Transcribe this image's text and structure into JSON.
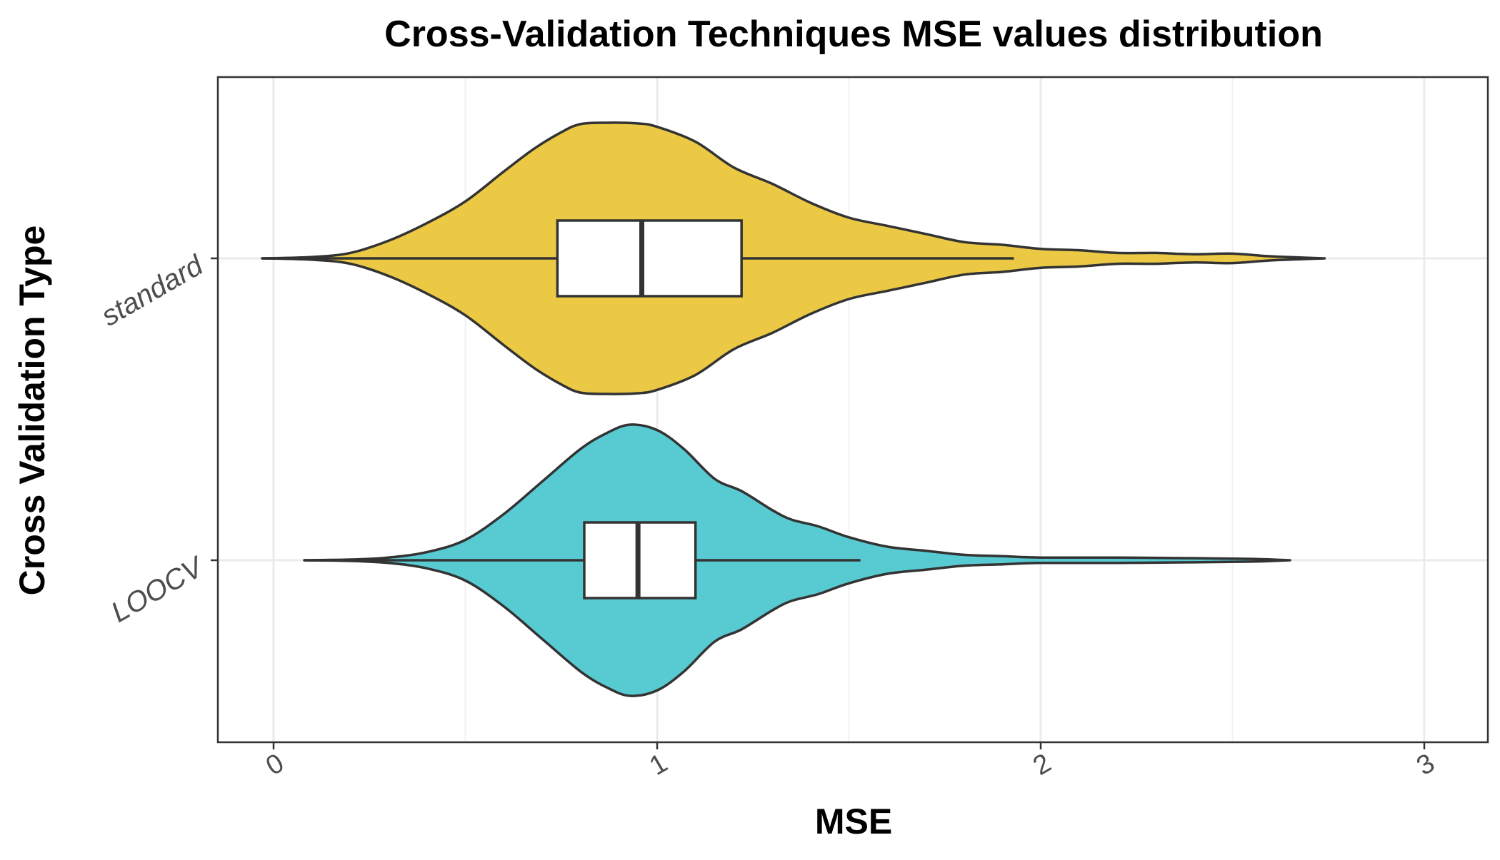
{
  "chart_data": {
    "type": "violin",
    "title": "Cross-Validation Techniques MSE values distribution",
    "xlabel": "MSE",
    "ylabel": "Cross Validation Type",
    "xlim": [
      -0.15,
      3.15
    ],
    "xticks": [
      0,
      1,
      2,
      3
    ],
    "xtick_labels": [
      "0",
      "1",
      "2",
      "3"
    ],
    "grid": true,
    "legend": "none",
    "categories": [
      "standard",
      "LOOCV"
    ],
    "series": [
      {
        "name": "standard",
        "color": "#ebc63a",
        "min": -0.03,
        "max": 2.74,
        "box": {
          "q1": 0.74,
          "median": 0.96,
          "q3": 1.22,
          "whisker_low": -0.03,
          "whisker_high": 1.93
        },
        "density": [
          [
            -0.03,
            0.0
          ],
          [
            0.1,
            0.01
          ],
          [
            0.2,
            0.04
          ],
          [
            0.3,
            0.13
          ],
          [
            0.4,
            0.26
          ],
          [
            0.5,
            0.42
          ],
          [
            0.6,
            0.64
          ],
          [
            0.68,
            0.81
          ],
          [
            0.75,
            0.93
          ],
          [
            0.8,
            0.99
          ],
          [
            0.87,
            1.0
          ],
          [
            0.95,
            0.995
          ],
          [
            1.0,
            0.97
          ],
          [
            1.1,
            0.86
          ],
          [
            1.2,
            0.67
          ],
          [
            1.3,
            0.55
          ],
          [
            1.4,
            0.41
          ],
          [
            1.5,
            0.3
          ],
          [
            1.6,
            0.24
          ],
          [
            1.7,
            0.18
          ],
          [
            1.8,
            0.12
          ],
          [
            1.9,
            0.1
          ],
          [
            2.0,
            0.07
          ],
          [
            2.1,
            0.06
          ],
          [
            2.2,
            0.04
          ],
          [
            2.3,
            0.04
          ],
          [
            2.4,
            0.03
          ],
          [
            2.5,
            0.035
          ],
          [
            2.6,
            0.015
          ],
          [
            2.74,
            0.0
          ]
        ]
      },
      {
        "name": "LOOCV",
        "color": "#4fc7d0",
        "min": 0.08,
        "max": 2.65,
        "box": {
          "q1": 0.81,
          "median": 0.95,
          "q3": 1.1,
          "whisker_low": 0.08,
          "whisker_high": 1.53
        },
        "density": [
          [
            0.08,
            0.0
          ],
          [
            0.2,
            0.005
          ],
          [
            0.3,
            0.02
          ],
          [
            0.4,
            0.06
          ],
          [
            0.5,
            0.15
          ],
          [
            0.6,
            0.34
          ],
          [
            0.7,
            0.58
          ],
          [
            0.8,
            0.82
          ],
          [
            0.87,
            0.94
          ],
          [
            0.93,
            1.0
          ],
          [
            1.0,
            0.96
          ],
          [
            1.07,
            0.82
          ],
          [
            1.15,
            0.6
          ],
          [
            1.22,
            0.51
          ],
          [
            1.3,
            0.37
          ],
          [
            1.35,
            0.3
          ],
          [
            1.42,
            0.25
          ],
          [
            1.5,
            0.17
          ],
          [
            1.6,
            0.1
          ],
          [
            1.7,
            0.07
          ],
          [
            1.8,
            0.04
          ],
          [
            1.9,
            0.03
          ],
          [
            2.0,
            0.02
          ],
          [
            2.2,
            0.02
          ],
          [
            2.4,
            0.015
          ],
          [
            2.55,
            0.01
          ],
          [
            2.65,
            0.0
          ]
        ]
      }
    ]
  }
}
